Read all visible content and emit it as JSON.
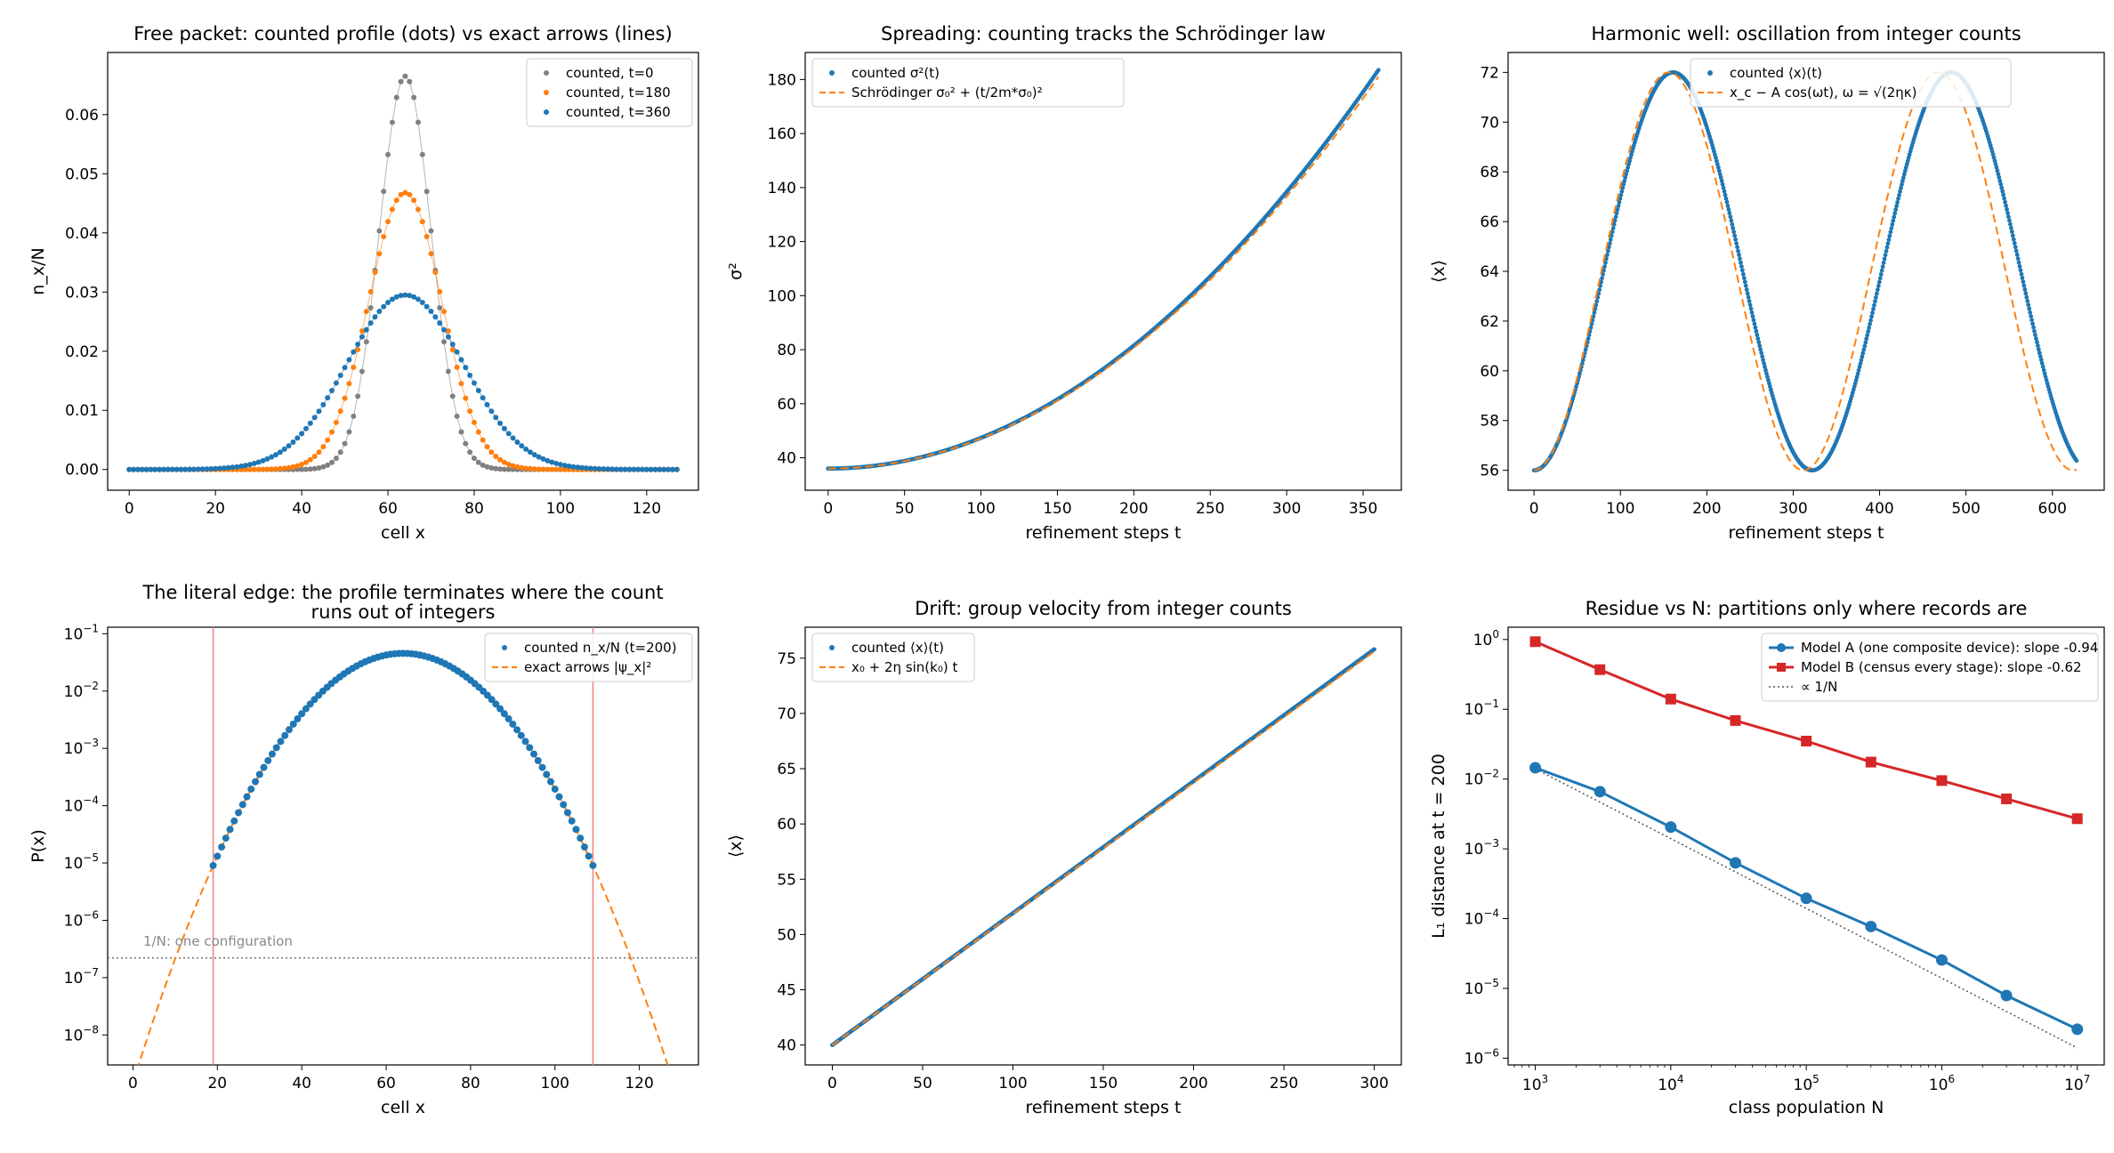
{
  "figure": {
    "colors": {
      "blue": "#1f77b4",
      "orange": "#ff7f0e",
      "gray": "#808080",
      "red": "#d62728",
      "pink": "#f08080"
    }
  },
  "chart_data": [
    {
      "id": "p1",
      "type": "scatter",
      "title": "Free packet: counted profile (dots) vs exact arrows (lines)",
      "xlabel": "cell x",
      "ylabel": "n_x/N",
      "xlim": [
        -5,
        132
      ],
      "ylim": [
        -0.0035,
        0.0705
      ],
      "xticks": [
        0,
        20,
        40,
        60,
        80,
        100,
        120
      ],
      "yticks": [
        0.0,
        0.01,
        0.02,
        0.03,
        0.04,
        0.05,
        0.06
      ],
      "ytick_labels": [
        "0.00",
        "0.01",
        "0.02",
        "0.03",
        "0.04",
        "0.05",
        "0.06"
      ],
      "legend_position": "top-right",
      "series": [
        {
          "name": "counted, t=0",
          "color": "#808080",
          "model": "gaussian",
          "center": 64,
          "peak": 0.0665,
          "sigma": 6,
          "x_range": [
            0,
            127
          ]
        },
        {
          "name": "counted, t=180",
          "color": "#ff7f0e",
          "model": "gaussian",
          "center": 64,
          "peak": 0.0468,
          "sigma": 8.5,
          "x_range": [
            0,
            127
          ]
        },
        {
          "name": "counted, t=360",
          "color": "#1f77b4",
          "model": "gaussian",
          "center": 64,
          "peak": 0.0295,
          "sigma": 13.5,
          "x_range": [
            0,
            127
          ]
        }
      ]
    },
    {
      "id": "p2",
      "type": "line",
      "title": "Spreading: counting tracks the Schrödinger law",
      "xlabel": "refinement steps t",
      "ylabel": "σ²",
      "xlim": [
        -15,
        375
      ],
      "ylim": [
        28,
        190
      ],
      "xticks": [
        0,
        50,
        100,
        150,
        200,
        250,
        300,
        350
      ],
      "yticks": [
        40,
        60,
        80,
        100,
        120,
        140,
        160,
        180
      ],
      "legend_position": "top-left",
      "series": [
        {
          "name": "counted σ²(t)",
          "style": "dots",
          "color": "#1f77b4",
          "model": "quadratic",
          "y0": 36,
          "y_end": 183.5,
          "x_range": [
            0,
            360
          ]
        },
        {
          "name": "Schrödinger σ₀² + (t/2m*σ₀)²",
          "style": "dashed",
          "color": "#ff7f0e",
          "model": "quadratic",
          "y0": 36,
          "y_end": 181,
          "x_range": [
            0,
            360
          ]
        }
      ]
    },
    {
      "id": "p3",
      "type": "line",
      "title": "Harmonic well: oscillation from integer counts",
      "xlabel": "refinement steps t",
      "ylabel": "⟨x⟩",
      "xlim": [
        -30,
        660
      ],
      "ylim": [
        55.2,
        72.8
      ],
      "xticks": [
        0,
        100,
        200,
        300,
        400,
        500,
        600
      ],
      "yticks": [
        56,
        58,
        60,
        62,
        64,
        66,
        68,
        70,
        72
      ],
      "legend_position": "top-center",
      "series": [
        {
          "name": "counted ⟨x⟩(t)",
          "style": "dots",
          "color": "#1f77b4",
          "model": "cosine",
          "center": 64,
          "amplitude": 8,
          "period": 322,
          "x_range": [
            0,
            628
          ]
        },
        {
          "name": "x_c − A cos(ωt), ω = √(2ηκ)",
          "style": "dashed",
          "color": "#ff7f0e",
          "model": "cosine",
          "center": 64,
          "amplitude": 8,
          "period": 312,
          "x_range": [
            0,
            628
          ]
        }
      ]
    },
    {
      "id": "p4",
      "type": "scatter",
      "title": "The literal edge: the profile terminates where the count",
      "title_line2": "runs out of integers",
      "xlabel": "cell x",
      "ylabel": "P(x)",
      "xlim": [
        -6,
        134
      ],
      "yscale": "log",
      "ylim": [
        3e-09,
        0.13
      ],
      "xticks": [
        0,
        20,
        40,
        60,
        80,
        100,
        120
      ],
      "yticks": [
        1e-08,
        1e-07,
        1e-06,
        1e-05,
        0.0001,
        0.001,
        0.01,
        0.1
      ],
      "ytick_exponents": [
        "−8",
        "−7",
        "−6",
        "−5",
        "−4",
        "−3",
        "−2",
        "−1"
      ],
      "legend_position": "top-right",
      "series": [
        {
          "name": "counted n_x/N (t=200)",
          "style": "dots",
          "color": "#1f77b4",
          "model": "gaussian",
          "center": 64,
          "peak": 0.0455,
          "sigma": 10.9,
          "x_range": [
            19,
            109
          ]
        },
        {
          "name": "exact arrows |ψ_x|²",
          "style": "dashed",
          "color": "#ff7f0e",
          "model": "gaussian",
          "center": 64,
          "peak": 0.0455,
          "sigma": 10.9,
          "x_range": [
            0,
            127
          ]
        }
      ],
      "vlines": [
        19,
        109
      ],
      "hline": 2.2e-07,
      "annotation": "1/N: one configuration"
    },
    {
      "id": "p5",
      "type": "line",
      "title": "Drift: group velocity from integer counts",
      "xlabel": "refinement steps t",
      "ylabel": "⟨x⟩",
      "xlim": [
        -15,
        315
      ],
      "ylim": [
        38.2,
        77.8
      ],
      "xticks": [
        0,
        50,
        100,
        150,
        200,
        250,
        300
      ],
      "yticks": [
        40,
        45,
        50,
        55,
        60,
        65,
        70,
        75
      ],
      "legend_position": "top-left",
      "series": [
        {
          "name": "counted ⟨x⟩(t)",
          "style": "dots",
          "color": "#1f77b4",
          "model": "linear",
          "y0": 40,
          "y_end": 75.8,
          "x_range": [
            0,
            300
          ]
        },
        {
          "name": "x₀ + 2η sin(k₀) t",
          "style": "dashed",
          "color": "#ff7f0e",
          "model": "linear",
          "y0": 40,
          "y_end": 75.6,
          "x_range": [
            0,
            300
          ]
        }
      ]
    },
    {
      "id": "p6",
      "type": "line",
      "title": "Residue vs N: partitions only where records are",
      "xlabel": "class population N",
      "ylabel": "L₁ distance at t = 200",
      "xscale": "log",
      "yscale": "log",
      "xlim": [
        630,
        15800000
      ],
      "ylim": [
        8e-07,
        1.5
      ],
      "xticks": [
        1000,
        10000,
        100000,
        1000000,
        10000000
      ],
      "xtick_exponents": [
        "3",
        "4",
        "5",
        "6",
        "7"
      ],
      "yticks": [
        1e-06,
        1e-05,
        0.0001,
        0.001,
        0.01,
        0.1,
        1
      ],
      "ytick_exponents": [
        "−6",
        "−5",
        "−4",
        "−3",
        "−2",
        "−1",
        "0"
      ],
      "legend_position": "top-right",
      "x": [
        1000,
        3000,
        10000,
        30000,
        100000,
        300000,
        1000000,
        3000000,
        10000000
      ],
      "series": [
        {
          "name": "Model A (one composite device): slope -0.94",
          "color": "#1f77b4",
          "marker": "circle",
          "values": [
            0.0145,
            0.0066,
            0.00205,
            0.00063,
            0.000195,
            7.7e-05,
            2.55e-05,
            7.9e-06,
            2.6e-06
          ]
        },
        {
          "name": "Model B (census every stage): slope -0.62",
          "color": "#d62728",
          "marker": "square",
          "values": [
            0.93,
            0.37,
            0.14,
            0.069,
            0.035,
            0.0175,
            0.0095,
            0.0052,
            0.0027
          ]
        },
        {
          "name": "∝ 1/N",
          "color": "#555555",
          "style": "dotted",
          "values": [
            0.014,
            0.0014,
            0.00014,
            1.4e-05,
            1.4e-06
          ],
          "x": [
            1000,
            10000,
            100000,
            1000000,
            10000000
          ]
        }
      ]
    }
  ]
}
